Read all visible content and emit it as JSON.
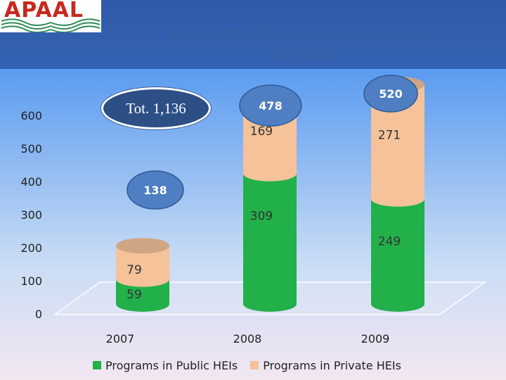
{
  "logo": {
    "text": "APAAL"
  },
  "slide_title": {
    "line1": "Reviewed/New/Bologna Study Programmes:",
    "line2": "2007-2009"
  },
  "total_bubble": "Tot. 1,136",
  "colors": {
    "public": "#22b04a",
    "private": "#f5c29a",
    "bubble": "#4f7fc2"
  },
  "chart_data": {
    "type": "bar",
    "stacked": true,
    "categories": [
      "2007",
      "2008",
      "2009"
    ],
    "series": [
      {
        "name": "Programs in Public HEIs",
        "values": [
          59,
          309,
          249
        ]
      },
      {
        "name": "Programs in Private HEIs",
        "values": [
          79,
          169,
          271
        ]
      }
    ],
    "totals": [
      138,
      478,
      520
    ],
    "yticks": [
      "0",
      "100",
      "200",
      "300",
      "400",
      "500",
      "600"
    ],
    "ylim": [
      0,
      600
    ],
    "legend_position": "bottom",
    "grid": false
  }
}
